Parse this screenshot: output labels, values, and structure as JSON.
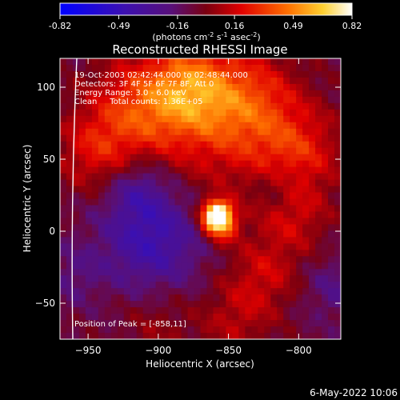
{
  "colorbar": {
    "ticks": [
      "-0.82",
      "-0.49",
      "-0.16",
      "0.16",
      "0.49",
      "0.82"
    ],
    "units_main": "(photons cm",
    "units_sup1": "-2",
    "units_mid": " s",
    "units_sup2": "-1",
    "units_end": " asec",
    "units_sup3": "-2",
    "units_close": ")"
  },
  "chart_data": {
    "type": "heatmap",
    "title": "Reconstructed RHESSI Image",
    "xlabel": "Heliocentric X (arcsec)",
    "ylabel": "Heliocentric Y (arcsec)",
    "xlim": [
      -970,
      -770
    ],
    "ylim": [
      -75,
      120
    ],
    "xticks": [
      -950,
      -900,
      -850,
      -800
    ],
    "yticks": [
      -50,
      0,
      50,
      100
    ],
    "color_range": [
      -0.82,
      0.82
    ],
    "annotations": [
      "19-Oct-2003 02:42:44.000 to 02:48:44.000",
      "Detectors: 3F 4F 5F 6F 7F 8F, Att 0",
      "Energy Range: 3.0 - 6.0 keV",
      "Clean     Total counts: 1.36E+05"
    ],
    "peak_label": "Position of Peak = [-858,11]",
    "peak": [
      -858,
      11
    ]
  },
  "footer": {
    "date": "6-May-2022 10:06"
  }
}
